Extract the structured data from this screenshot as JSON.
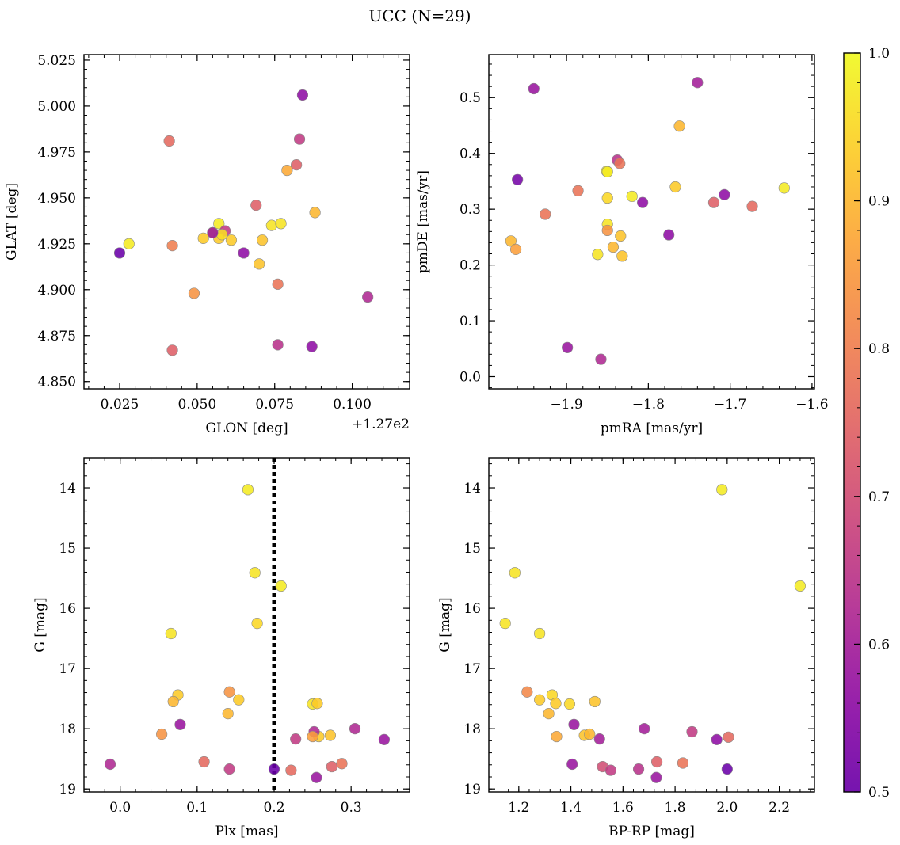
{
  "figure": {
    "title": "UCC (N=29)"
  },
  "chart_data": [
    {
      "type": "scatter",
      "panel": "GLON-GLAT",
      "xlabel": "GLON [deg]",
      "ylabel": "GLAT [deg]",
      "xlim": [
        0.0135,
        0.1185
      ],
      "ylim": [
        4.846,
        5.028
      ],
      "xticks": [
        0.025,
        0.05,
        0.075,
        0.1
      ],
      "xtick_labels": [
        "0.025",
        "0.050",
        "0.075",
        "0.100"
      ],
      "yticks": [
        4.85,
        4.875,
        4.9,
        4.925,
        4.95,
        4.975,
        5.0,
        5.025
      ],
      "ytick_labels": [
        "4.850",
        "4.875",
        "4.900",
        "4.925",
        "4.950",
        "4.975",
        "5.000",
        "5.025"
      ],
      "offset_label": "+1.27e2",
      "x": [
        0.084,
        0.041,
        0.083,
        0.082,
        0.079,
        0.088,
        0.069,
        0.074,
        0.077,
        0.057,
        0.055,
        0.059,
        0.057,
        0.058,
        0.052,
        0.061,
        0.071,
        0.028,
        0.025,
        0.042,
        0.065,
        0.07,
        0.049,
        0.076,
        0.105,
        0.042,
        0.076,
        0.087,
        0.055
      ],
      "y": [
        5.006,
        4.981,
        4.982,
        4.968,
        4.965,
        4.942,
        4.946,
        4.935,
        4.936,
        4.936,
        4.931,
        4.932,
        4.928,
        4.93,
        4.928,
        4.927,
        4.927,
        4.925,
        4.92,
        4.924,
        4.92,
        4.914,
        4.898,
        4.903,
        4.896,
        4.867,
        4.87,
        4.869,
        4.931
      ],
      "prob": [
        0.56,
        0.76,
        0.66,
        0.74,
        0.88,
        0.9,
        0.74,
        0.97,
        0.97,
        0.98,
        0.95,
        0.66,
        0.93,
        0.96,
        0.93,
        0.93,
        0.92,
        0.98,
        0.5,
        0.8,
        0.56,
        0.92,
        0.84,
        0.78,
        0.62,
        0.74,
        0.64,
        0.56,
        0.58
      ]
    },
    {
      "type": "scatter",
      "panel": "pmRA-pmDE",
      "xlabel": "pmRA [mas/yr]",
      "ylabel": "pmDE [mas/yr]",
      "xlim": [
        -1.995,
        -1.597
      ],
      "ylim": [
        -0.022,
        0.577
      ],
      "xticks": [
        -2.0,
        -1.9,
        -1.8,
        -1.7,
        -1.6
      ],
      "xtick_labels": [
        "−2.0",
        "−1.9",
        "−1.8",
        "−1.7",
        "−1.6"
      ],
      "yticks": [
        0.0,
        0.1,
        0.2,
        0.3,
        0.4,
        0.5
      ],
      "ytick_labels": [
        "0.0",
        "0.1",
        "0.2",
        "0.3",
        "0.4",
        "0.5"
      ],
      "x": [
        -1.74,
        -1.94,
        -1.762,
        -1.838,
        -1.835,
        -1.96,
        -1.886,
        -1.807,
        -1.707,
        -1.72,
        -1.673,
        -1.634,
        -1.767,
        -1.82,
        -1.85,
        -1.85,
        -1.85,
        -1.926,
        -1.968,
        -1.962,
        -1.851,
        -1.834,
        -1.843,
        -1.862,
        -1.832,
        -1.775,
        -1.899,
        -1.858,
        -1.85
      ],
      "y": [
        0.527,
        0.516,
        0.449,
        0.388,
        0.382,
        0.353,
        0.333,
        0.312,
        0.326,
        0.312,
        0.305,
        0.338,
        0.34,
        0.323,
        0.32,
        0.273,
        0.262,
        0.291,
        0.243,
        0.228,
        0.368,
        0.252,
        0.232,
        0.219,
        0.216,
        0.254,
        0.052,
        0.031,
        0.367
      ],
      "prob": [
        0.6,
        0.58,
        0.9,
        0.64,
        0.78,
        0.52,
        0.78,
        0.56,
        0.56,
        0.74,
        0.76,
        0.98,
        0.93,
        0.98,
        0.95,
        0.97,
        0.84,
        0.78,
        0.9,
        0.86,
        0.98,
        0.92,
        0.9,
        0.97,
        0.92,
        0.56,
        0.58,
        0.62,
        0.98
      ]
    },
    {
      "type": "scatter",
      "panel": "Plx-G",
      "xlabel": "Plx [mas]",
      "ylabel": "G [mag]",
      "xlim": [
        -0.047,
        0.376
      ],
      "ylim": [
        19.05,
        13.5
      ],
      "y_inverted": true,
      "xticks": [
        0.0,
        0.1,
        0.2,
        0.3
      ],
      "xtick_labels": [
        "0.0",
        "0.1",
        "0.2",
        "0.3"
      ],
      "yticks": [
        14,
        15,
        16,
        17,
        18,
        19
      ],
      "ytick_labels": [
        "14",
        "15",
        "16",
        "17",
        "18",
        "19"
      ],
      "vline_x": 0.2,
      "x": [
        0.166,
        0.175,
        0.209,
        0.066,
        0.178,
        0.075,
        0.069,
        0.142,
        0.154,
        0.25,
        0.256,
        0.14,
        0.078,
        0.054,
        0.258,
        0.273,
        0.252,
        0.305,
        0.228,
        0.343,
        -0.013,
        0.109,
        0.142,
        0.2,
        0.222,
        0.255,
        0.275,
        0.288,
        0.25
      ],
      "y": [
        14.03,
        15.41,
        15.63,
        16.42,
        16.25,
        17.44,
        17.55,
        17.39,
        17.52,
        17.59,
        17.58,
        17.75,
        17.93,
        18.09,
        18.13,
        18.11,
        18.05,
        18.0,
        18.17,
        18.18,
        18.59,
        18.55,
        18.67,
        18.67,
        18.69,
        18.81,
        18.63,
        18.58,
        18.13
      ],
      "prob": [
        0.98,
        0.97,
        0.98,
        0.97,
        0.95,
        0.93,
        0.9,
        0.84,
        0.93,
        0.97,
        0.93,
        0.9,
        0.58,
        0.84,
        0.93,
        0.92,
        0.62,
        0.62,
        0.66,
        0.58,
        0.62,
        0.76,
        0.66,
        0.5,
        0.76,
        0.58,
        0.74,
        0.78,
        0.86
      ]
    },
    {
      "type": "scatter",
      "panel": "BP-RP-G",
      "xlabel": "BP-RP [mag]",
      "ylabel": "G [mag]",
      "xlim": [
        1.085,
        2.335
      ],
      "ylim": [
        19.05,
        13.5
      ],
      "y_inverted": true,
      "xticks": [
        1.2,
        1.4,
        1.6,
        1.8,
        2.0,
        2.2
      ],
      "xtick_labels": [
        "1.2",
        "1.4",
        "1.6",
        "1.8",
        "2.0",
        "2.2"
      ],
      "yticks": [
        14,
        15,
        16,
        17,
        18,
        19
      ],
      "ytick_labels": [
        "14",
        "15",
        "16",
        "17",
        "18",
        "19"
      ],
      "x": [
        1.98,
        1.185,
        2.28,
        1.148,
        1.28,
        1.232,
        1.328,
        1.28,
        1.342,
        1.395,
        1.492,
        1.315,
        1.412,
        1.345,
        1.452,
        1.472,
        1.51,
        1.682,
        1.865,
        1.96,
        2.005,
        1.405,
        1.522,
        1.553,
        1.66,
        1.73,
        1.83,
        1.728,
        2.0
      ],
      "y": [
        14.03,
        15.41,
        15.63,
        16.25,
        16.42,
        17.39,
        17.44,
        17.52,
        17.58,
        17.59,
        17.55,
        17.75,
        17.93,
        18.13,
        18.11,
        18.09,
        18.17,
        18.0,
        18.05,
        18.18,
        18.14,
        18.59,
        18.63,
        18.69,
        18.67,
        18.55,
        18.57,
        18.81,
        18.67
      ],
      "prob": [
        0.98,
        0.97,
        0.98,
        0.97,
        0.97,
        0.82,
        0.95,
        0.93,
        0.93,
        0.95,
        0.92,
        0.9,
        0.58,
        0.88,
        0.92,
        0.9,
        0.6,
        0.6,
        0.66,
        0.56,
        0.76,
        0.58,
        0.7,
        0.66,
        0.64,
        0.74,
        0.78,
        0.58,
        0.5
      ]
    }
  ],
  "colorbar": {
    "colormap": "plasma",
    "range": [
      0.5,
      1.0
    ],
    "ticks": [
      0.5,
      0.6,
      0.7,
      0.8,
      0.9,
      1.0
    ],
    "tick_labels": [
      "0.5",
      "0.6",
      "0.7",
      "0.8",
      "0.9",
      "1.0"
    ]
  },
  "colors": {
    "marker_edge": "#8a8a8a",
    "vline": "#000000"
  }
}
